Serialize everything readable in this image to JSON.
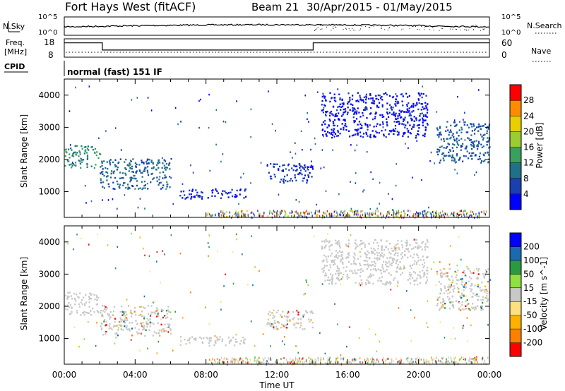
{
  "header": {
    "station": "Fort Hays West (fitACF)",
    "beam": "Beam 21",
    "dates": "30/Apr/2015 - 01/May/2015"
  },
  "summary": {
    "nsky_label": "N.Sky",
    "nsearch_label": "N.Search",
    "freq_label_1": "Freq.",
    "freq_label_2": "[MHz]",
    "nave_label": "Nave",
    "cpid_label": "CPID",
    "cpid_text": "normal (fast) 151 IF",
    "noise_ticks": [
      "10^5",
      "10^0"
    ],
    "noise_ticks_right": [
      "10^5",
      "10^0"
    ],
    "freq_ticks": [
      "18",
      "8"
    ],
    "nave_ticks": [
      "60",
      "0"
    ],
    "freq_profile": [
      {
        "t": 0,
        "mhz": 17
      },
      {
        "t": 2.15,
        "mhz": 17
      },
      {
        "t": 2.15,
        "mhz": 11
      },
      {
        "t": 14.05,
        "mhz": 11
      },
      {
        "t": 14.05,
        "mhz": 17
      },
      {
        "t": 24,
        "mhz": 17
      }
    ]
  },
  "chart_data": [
    {
      "type": "heatmap",
      "name": "power-panel",
      "ylabel": "Slant Range [km]",
      "colorbar_label": "Power [dB]",
      "colorbar_ticks": [
        "28",
        "24",
        "20",
        "16",
        "12",
        "8",
        "4"
      ],
      "colorbar_colors": [
        "#0000ff",
        "#1a3fb0",
        "#20708a",
        "#3aa060",
        "#9acd32",
        "#e8d000",
        "#ff8c00",
        "#ff0000"
      ],
      "xlim": [
        0,
        24
      ],
      "ylim": [
        200,
        4500
      ],
      "y_ticks": [
        1000,
        2000,
        3000,
        4000
      ],
      "regions": [
        {
          "t0": 0,
          "t1": 2,
          "r0": 1750,
          "r1": 2450,
          "level": 0.6
        },
        {
          "t0": 2,
          "t1": 6,
          "r0": 1100,
          "r1": 2050,
          "level": 0.45
        },
        {
          "t0": 6.5,
          "t1": 10.3,
          "r0": 800,
          "r1": 1100,
          "level": 0.2
        },
        {
          "t0": 11.4,
          "t1": 14,
          "r0": 1300,
          "r1": 1900,
          "level": 0.25
        },
        {
          "t0": 14.5,
          "t1": 20.5,
          "r0": 2700,
          "r1": 4100,
          "level": 0.12
        },
        {
          "t0": 21,
          "t1": 24,
          "r0": 1900,
          "r1": 3200,
          "level": 0.4
        }
      ],
      "ground_scatter_band_km": [
        200,
        450
      ]
    },
    {
      "type": "heatmap",
      "name": "velocity-panel",
      "ylabel": "Slant Range [km]",
      "xlabel": "Time UT",
      "colorbar_label": "Velocity [m s^-1]",
      "colorbar_ticks": [
        "200",
        "100",
        "50",
        "15",
        "-15",
        "-50",
        "-100",
        "-200"
      ],
      "colorbar_colors": [
        "#ff0000",
        "#ff7f00",
        "#ffb000",
        "#ffe080",
        "#c8c8c8",
        "#90e040",
        "#2a9a40",
        "#1a6ab0",
        "#0000ff"
      ],
      "xlim": [
        0,
        24
      ],
      "ylim": [
        200,
        4500
      ],
      "y_ticks": [
        1000,
        2000,
        3000,
        4000
      ],
      "x_ticks": [
        "00:00",
        "04:00",
        "08:00",
        "12:00",
        "16:00",
        "20:00",
        "00:00"
      ],
      "regions": [
        {
          "t0": 0,
          "t1": 2,
          "r0": 1750,
          "r1": 2450,
          "class": "ground"
        },
        {
          "t0": 2,
          "t1": 6,
          "r0": 1100,
          "r1": 2050,
          "class": "mixed"
        },
        {
          "t0": 6.5,
          "t1": 10.3,
          "r0": 800,
          "r1": 1100,
          "class": "ground"
        },
        {
          "t0": 11.4,
          "t1": 14,
          "r0": 1300,
          "r1": 1900,
          "class": "mixed"
        },
        {
          "t0": 14.5,
          "t1": 20.5,
          "r0": 2700,
          "r1": 4100,
          "class": "ground"
        },
        {
          "t0": 21,
          "t1": 24,
          "r0": 1900,
          "r1": 3200,
          "class": "mixed"
        }
      ]
    }
  ]
}
